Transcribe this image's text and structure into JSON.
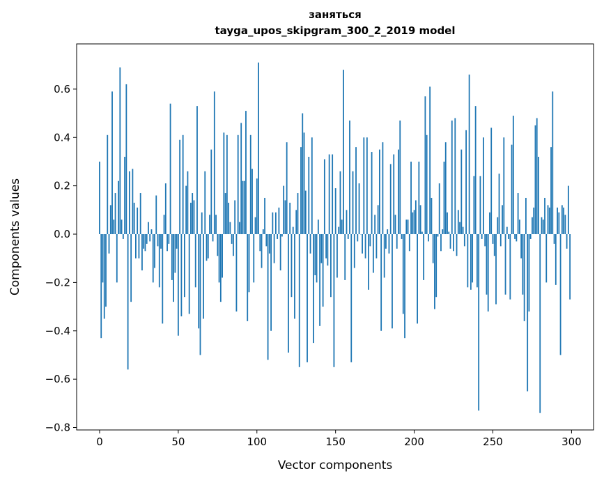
{
  "chart_data": {
    "type": "bar",
    "title": "заняться",
    "subtitle": "tayga_upos_skipgram_300_2_2019 model",
    "xlabel": "Vector components",
    "ylabel": "Components values",
    "xlim": [
      -14.6,
      314
    ],
    "ylim": [
      -0.81,
      0.787
    ],
    "xticks": [
      0,
      50,
      100,
      150,
      200,
      250,
      300
    ],
    "yticks": [
      -0.8,
      -0.6,
      -0.4,
      -0.2,
      0.0,
      0.2,
      0.4,
      0.6
    ],
    "ytick_labels": [
      "−0.8",
      "−0.6",
      "−0.4",
      "−0.2",
      "0.0",
      "0.2",
      "0.4",
      "0.6"
    ],
    "grid": false,
    "color": "#1f77b4",
    "values": [
      0.3,
      -0.43,
      -0.2,
      -0.35,
      -0.3,
      0.41,
      -0.08,
      0.12,
      0.59,
      0.06,
      0.17,
      -0.2,
      0.22,
      0.69,
      0.06,
      -0.02,
      0.32,
      0.62,
      -0.56,
      0.26,
      -0.28,
      0.27,
      0.13,
      -0.1,
      0.11,
      -0.1,
      0.17,
      -0.15,
      -0.06,
      -0.07,
      -0.04,
      0.05,
      -0.03,
      0.02,
      -0.2,
      -0.14,
      0.16,
      -0.05,
      -0.22,
      -0.06,
      -0.37,
      0.08,
      0.21,
      -0.07,
      -0.04,
      0.54,
      -0.19,
      -0.28,
      -0.16,
      -0.06,
      -0.42,
      0.39,
      -0.34,
      0.41,
      -0.26,
      0.2,
      0.26,
      -0.33,
      0.13,
      0.17,
      0.14,
      -0.22,
      0.53,
      -0.39,
      -0.5,
      0.09,
      -0.35,
      0.26,
      -0.11,
      -0.1,
      0.08,
      0.35,
      -0.03,
      0.59,
      0.08,
      -0.09,
      -0.2,
      -0.28,
      -0.18,
      0.42,
      0.17,
      0.41,
      0.13,
      0.05,
      -0.04,
      -0.09,
      0.14,
      -0.32,
      0.41,
      0.05,
      0.46,
      0.22,
      0.22,
      0.51,
      -0.36,
      -0.24,
      0.41,
      0.27,
      -0.2,
      0.07,
      0.23,
      0.71,
      -0.07,
      -0.14,
      0.02,
      0.15,
      -0.05,
      -0.52,
      -0.08,
      -0.4,
      0.09,
      -0.12,
      0.09,
      -0.02,
      0.11,
      -0.15,
      -0.01,
      0.2,
      0.14,
      0.38,
      -0.49,
      0.13,
      -0.26,
      0.03,
      -0.35,
      0.1,
      0.17,
      -0.55,
      0.36,
      0.5,
      0.42,
      0.18,
      -0.53,
      0.32,
      -0.08,
      0.4,
      -0.45,
      -0.17,
      -0.2,
      0.06,
      -0.38,
      -0.12,
      -0.3,
      0.31,
      -0.1,
      -0.13,
      0.33,
      -0.26,
      0.33,
      -0.55,
      0.19,
      -0.18,
      0.03,
      0.26,
      0.06,
      0.68,
      -0.19,
      0.1,
      -0.02,
      0.47,
      -0.53,
      0.26,
      -0.14,
      0.36,
      -0.03,
      0.21,
      0.0,
      -0.08,
      0.4,
      -0.1,
      0.4,
      -0.23,
      -0.05,
      0.34,
      -0.16,
      0.08,
      -0.1,
      0.12,
      0.35,
      -0.4,
      0.38,
      -0.18,
      -0.06,
      0.02,
      -0.08,
      0.29,
      -0.39,
      0.33,
      0.08,
      -0.06,
      0.35,
      0.47,
      -0.02,
      -0.33,
      -0.43,
      0.06,
      0.06,
      -0.07,
      0.3,
      0.09,
      0.1,
      0.14,
      -0.37,
      0.3,
      0.12,
      0.01,
      -0.19,
      0.57,
      0.41,
      -0.03,
      0.61,
      0.15,
      -0.12,
      -0.31,
      -0.26,
      -0.01,
      0.21,
      -0.07,
      0.02,
      0.3,
      0.38,
      0.09,
      0.01,
      -0.06,
      0.47,
      -0.07,
      0.48,
      -0.09,
      0.1,
      0.05,
      0.35,
      0.03,
      -0.05,
      0.43,
      -0.22,
      0.66,
      -0.23,
      -0.2,
      0.24,
      0.53,
      -0.22,
      -0.73,
      0.24,
      -0.02,
      0.4,
      -0.05,
      -0.25,
      -0.32,
      0.09,
      0.44,
      -0.04,
      -0.09,
      -0.29,
      0.07,
      0.25,
      -0.05,
      0.12,
      0.4,
      -0.25,
      0.03,
      -0.02,
      -0.27,
      0.37,
      0.49,
      -0.02,
      -0.03,
      0.17,
      0.06,
      -0.1,
      -0.25,
      -0.36,
      0.15,
      -0.65,
      -0.32,
      -0.02,
      0.07,
      0.11,
      0.45,
      0.48,
      0.32,
      -0.74,
      0.07,
      0.06,
      0.15,
      -0.2,
      0.12,
      0.11,
      0.36,
      0.59,
      -0.04,
      -0.21,
      0.11,
      0.09,
      -0.5,
      0.12,
      0.11,
      0.08,
      -0.06,
      0.2,
      -0.27
    ]
  }
}
